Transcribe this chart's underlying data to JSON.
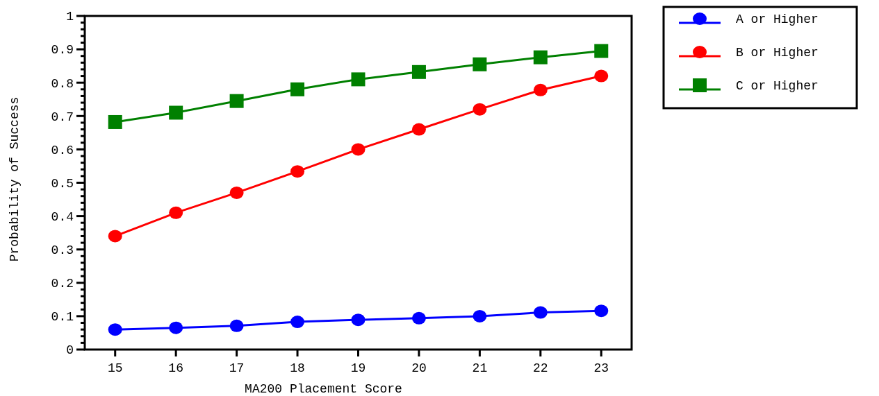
{
  "chart_data": {
    "type": "line",
    "xlabel": "MA200 Placement Score",
    "ylabel": "Probability of Success",
    "x": [
      15,
      16,
      17,
      18,
      19,
      20,
      21,
      22,
      23
    ],
    "series": [
      {
        "name": "A or Higher",
        "color": "#0000ff",
        "marker": "circle",
        "values": [
          0.06,
          0.065,
          0.071,
          0.083,
          0.089,
          0.094,
          0.1,
          0.111,
          0.116
        ]
      },
      {
        "name": "B or Higher",
        "color": "#ff0000",
        "marker": "circle",
        "values": [
          0.34,
          0.41,
          0.47,
          0.534,
          0.6,
          0.66,
          0.72,
          0.778,
          0.82
        ]
      },
      {
        "name": "C or Higher",
        "color": "#008000",
        "marker": "square",
        "values": [
          0.682,
          0.71,
          0.745,
          0.78,
          0.81,
          0.832,
          0.855,
          0.876,
          0.895
        ]
      }
    ],
    "xlim": [
      14.5,
      23.5
    ],
    "xticks": [
      15,
      16,
      17,
      18,
      19,
      20,
      21,
      22,
      23
    ],
    "ylim": [
      0,
      1
    ],
    "yticks": [
      0,
      0.1,
      0.2,
      0.3,
      0.4,
      0.5,
      0.6,
      0.7,
      0.8,
      0.9,
      1
    ],
    "legend": "top right",
    "grid": false,
    "line_style": "solid"
  }
}
